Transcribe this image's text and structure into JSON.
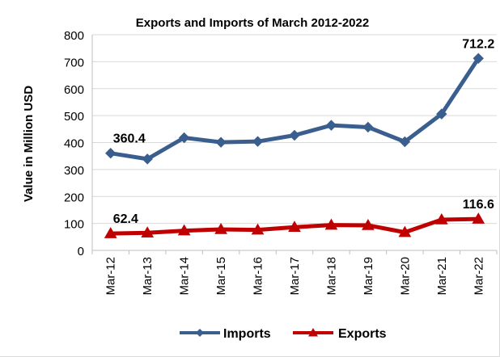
{
  "chart_data": {
    "type": "line",
    "title": "Exports and Imports of March 2012-2022",
    "xlabel": "",
    "ylabel": "Value in  Million  USD",
    "categories": [
      "Mar-12",
      "Mar-13",
      "Mar-14",
      "Mar-15",
      "Mar-16",
      "Mar-17",
      "Mar-18",
      "Mar-19",
      "Mar-20",
      "Mar-21",
      "Mar-22"
    ],
    "ylim": [
      0,
      800
    ],
    "yticks": [
      0,
      100,
      200,
      300,
      400,
      500,
      600,
      700,
      800
    ],
    "grid": true,
    "legend_position": "bottom",
    "series": [
      {
        "name": "Imports",
        "color": "#3a5f8f",
        "marker": "diamond",
        "values": [
          360.4,
          339,
          418,
          401,
          404,
          427,
          464,
          457,
          403,
          506,
          712.2
        ]
      },
      {
        "name": "Exports",
        "color": "#c00000",
        "marker": "triangle",
        "values": [
          62.4,
          65,
          73,
          78,
          76,
          86,
          94,
          93,
          67,
          114,
          116.6
        ]
      }
    ],
    "annotations": [
      {
        "series": 0,
        "index": 0,
        "text": "360.4"
      },
      {
        "series": 0,
        "index": 10,
        "text": "712.2"
      },
      {
        "series": 1,
        "index": 0,
        "text": "62.4"
      },
      {
        "series": 1,
        "index": 10,
        "text": "116.6"
      }
    ]
  }
}
